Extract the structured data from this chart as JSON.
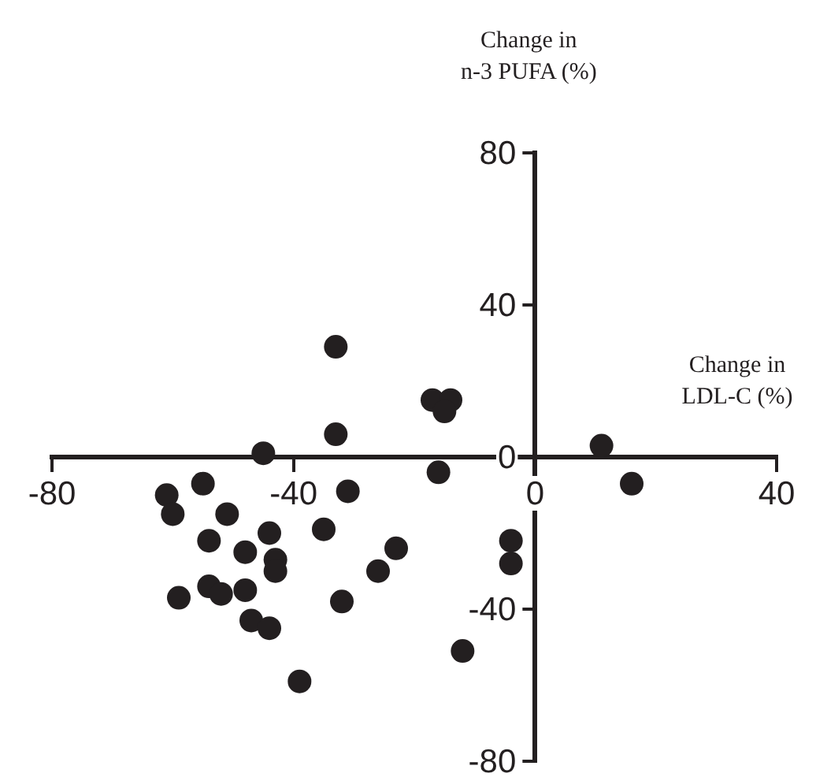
{
  "chart_data": {
    "type": "scatter",
    "xlabel": "Change in\nLDL-C (%)",
    "ylabel": "Change in\nn-3 PUFA (%)",
    "xlim": [
      -80,
      40
    ],
    "xticks": [
      -80,
      -40,
      0,
      40
    ],
    "ylim": [
      -80,
      80
    ],
    "yticks": [
      -80,
      -40,
      0,
      40,
      80
    ],
    "grid": false,
    "legend": false,
    "marker": "circle",
    "series": [
      {
        "color": "#231f20",
        "x": [
          -33,
          -33,
          -17,
          -14,
          -15,
          -16,
          -31,
          -35,
          -23,
          -26,
          -32,
          -12,
          -4,
          -4,
          -39,
          -45,
          -61,
          -60,
          -55,
          -51,
          -44,
          -54,
          -48,
          -43,
          -43,
          -59,
          -54,
          -52,
          -48,
          -47,
          -44,
          11,
          16
        ],
        "values": [
          29,
          6,
          15,
          15,
          12,
          -4,
          -9,
          -19,
          -24,
          -30,
          -38,
          -51,
          -22,
          -28,
          -59,
          1,
          -10,
          -15,
          -7,
          -15,
          -20,
          -22,
          -25,
          -27,
          -30,
          -37,
          -34,
          -36,
          -35,
          -43,
          -45,
          3,
          -7
        ]
      }
    ]
  }
}
